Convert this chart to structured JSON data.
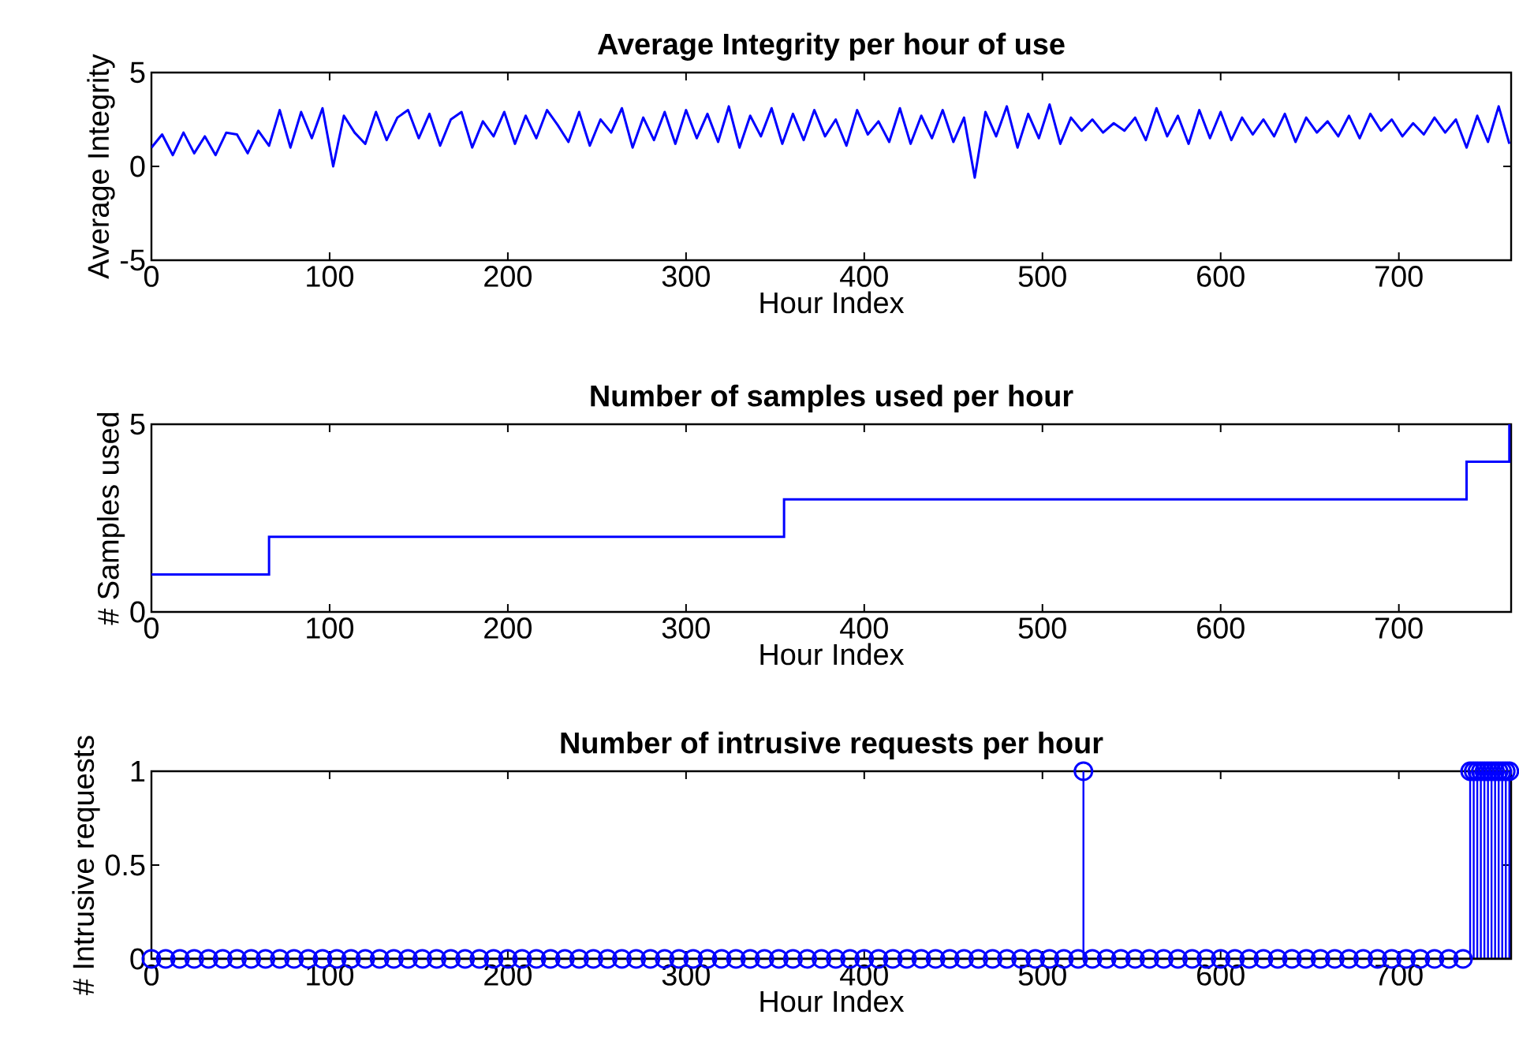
{
  "chart_data": [
    {
      "type": "line",
      "title": "Average Integrity per hour of use",
      "xlabel": "Hour Index",
      "ylabel": "Average Integrity",
      "color": "#0000ff",
      "xlim": [
        0,
        763
      ],
      "ylim": [
        -5,
        5
      ],
      "xticks": [
        0,
        100,
        200,
        300,
        400,
        500,
        600,
        700
      ],
      "yticks": [
        -5,
        0,
        5
      ],
      "x": [
        0,
        6,
        12,
        18,
        24,
        30,
        36,
        42,
        48,
        54,
        60,
        66,
        72,
        78,
        84,
        90,
        96,
        102,
        108,
        114,
        120,
        126,
        132,
        138,
        144,
        150,
        156,
        162,
        168,
        174,
        180,
        186,
        192,
        198,
        204,
        210,
        216,
        222,
        228,
        234,
        240,
        246,
        252,
        258,
        264,
        270,
        276,
        282,
        288,
        294,
        300,
        306,
        312,
        318,
        324,
        330,
        336,
        342,
        348,
        354,
        360,
        366,
        372,
        378,
        384,
        390,
        396,
        402,
        408,
        414,
        420,
        426,
        432,
        438,
        444,
        450,
        456,
        462,
        468,
        474,
        480,
        486,
        492,
        498,
        504,
        510,
        516,
        522,
        528,
        534,
        540,
        546,
        552,
        558,
        564,
        570,
        576,
        582,
        588,
        594,
        600,
        606,
        612,
        618,
        624,
        630,
        636,
        642,
        648,
        654,
        660,
        666,
        672,
        678,
        684,
        690,
        696,
        702,
        708,
        714,
        720,
        726,
        732,
        738,
        744,
        750,
        756,
        762
      ],
      "values": [
        1.0,
        1.7,
        0.6,
        1.8,
        0.7,
        1.6,
        0.6,
        1.8,
        1.7,
        0.7,
        1.9,
        1.1,
        3.0,
        1.0,
        2.9,
        1.5,
        3.1,
        0.0,
        2.7,
        1.8,
        1.2,
        2.9,
        1.4,
        2.6,
        3.0,
        1.5,
        2.8,
        1.1,
        2.5,
        2.9,
        1.0,
        2.4,
        1.6,
        2.9,
        1.2,
        2.7,
        1.5,
        3.0,
        2.2,
        1.3,
        2.9,
        1.1,
        2.5,
        1.8,
        3.1,
        1.0,
        2.6,
        1.4,
        2.9,
        1.2,
        3.0,
        1.5,
        2.8,
        1.3,
        3.2,
        1.0,
        2.7,
        1.6,
        3.1,
        1.2,
        2.8,
        1.4,
        3.0,
        1.6,
        2.5,
        1.1,
        3.0,
        1.7,
        2.4,
        1.3,
        3.1,
        1.2,
        2.7,
        1.5,
        3.0,
        1.3,
        2.6,
        -0.6,
        2.9,
        1.6,
        3.2,
        1.0,
        2.8,
        1.5,
        3.3,
        1.2,
        2.6,
        1.9,
        2.5,
        1.8,
        2.3,
        1.9,
        2.6,
        1.4,
        3.1,
        1.6,
        2.7,
        1.2,
        3.0,
        1.5,
        2.9,
        1.4,
        2.6,
        1.7,
        2.5,
        1.6,
        2.8,
        1.3,
        2.6,
        1.8,
        2.4,
        1.6,
        2.7,
        1.5,
        2.8,
        1.9,
        2.5,
        1.6,
        2.3,
        1.7,
        2.6,
        1.8,
        2.5,
        1.0,
        2.7,
        1.3,
        3.2,
        1.2
      ]
    },
    {
      "type": "step",
      "title": "Number of samples used per hour",
      "xlabel": "Hour Index",
      "ylabel": "# Samples used",
      "color": "#0000ff",
      "xlim": [
        0,
        763
      ],
      "ylim": [
        0,
        5
      ],
      "xticks": [
        0,
        100,
        200,
        300,
        400,
        500,
        600,
        700
      ],
      "yticks": [
        0,
        5
      ],
      "x": [
        0,
        66,
        355,
        738,
        762
      ],
      "values": [
        1,
        2,
        3,
        4,
        5
      ]
    },
    {
      "type": "lollipop",
      "title": "Number of intrusive requests per hour",
      "xlabel": "Hour Index",
      "ylabel": "# Intrusive requests",
      "color": "#0000ff",
      "marker": "circle",
      "xlim": [
        0,
        763
      ],
      "ylim": [
        0,
        1
      ],
      "xticks": [
        0,
        100,
        200,
        300,
        400,
        500,
        600,
        700
      ],
      "yticks": [
        0,
        0.5,
        1
      ],
      "x": [
        0,
        8,
        16,
        24,
        32,
        40,
        48,
        56,
        64,
        72,
        80,
        88,
        96,
        104,
        112,
        120,
        128,
        136,
        144,
        152,
        160,
        168,
        176,
        184,
        192,
        200,
        208,
        216,
        224,
        232,
        240,
        248,
        256,
        264,
        272,
        280,
        288,
        296,
        304,
        312,
        320,
        328,
        336,
        344,
        352,
        360,
        368,
        376,
        384,
        392,
        400,
        408,
        416,
        424,
        432,
        440,
        448,
        456,
        464,
        472,
        480,
        488,
        496,
        504,
        512,
        520,
        523,
        528,
        536,
        544,
        552,
        560,
        568,
        576,
        584,
        592,
        600,
        608,
        616,
        624,
        632,
        640,
        648,
        656,
        664,
        672,
        680,
        688,
        696,
        704,
        712,
        720,
        728,
        736,
        740,
        742,
        744,
        746,
        748,
        750,
        752,
        754,
        756,
        758,
        760,
        762
      ],
      "values": [
        0,
        0,
        0,
        0,
        0,
        0,
        0,
        0,
        0,
        0,
        0,
        0,
        0,
        0,
        0,
        0,
        0,
        0,
        0,
        0,
        0,
        0,
        0,
        0,
        0,
        0,
        0,
        0,
        0,
        0,
        0,
        0,
        0,
        0,
        0,
        0,
        0,
        0,
        0,
        0,
        0,
        0,
        0,
        0,
        0,
        0,
        0,
        0,
        0,
        0,
        0,
        0,
        0,
        0,
        0,
        0,
        0,
        0,
        0,
        0,
        0,
        0,
        0,
        0,
        0,
        0,
        1,
        0,
        0,
        0,
        0,
        0,
        0,
        0,
        0,
        0,
        0,
        0,
        0,
        0,
        0,
        0,
        0,
        0,
        0,
        0,
        0,
        0,
        0,
        0,
        0,
        0,
        0,
        0,
        1,
        1,
        1,
        1,
        1,
        1,
        1,
        1,
        1,
        1,
        1,
        1
      ]
    }
  ]
}
